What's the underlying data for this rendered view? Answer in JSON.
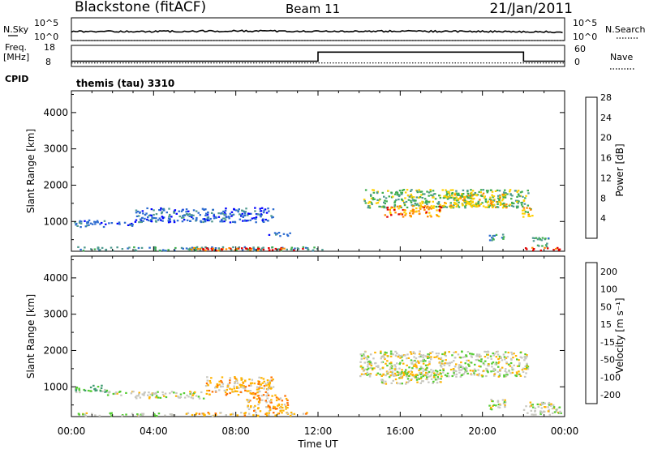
{
  "header": {
    "station": "Blackstone (fitACF)",
    "beam": "Beam 11",
    "date": "21/Jan/2011"
  },
  "chart_data": [
    {
      "type": "line",
      "panel": "noise",
      "left_label": "N.Sky",
      "right_label": "N.Search",
      "left_ticks": [
        "10^5",
        "10^0"
      ],
      "right_ticks": [
        "10^5",
        "10^0"
      ],
      "scale": "log",
      "series": [
        {
          "name": "N.Sky",
          "style": "solid",
          "x": [
            0,
            4,
            8,
            12,
            16,
            20,
            24
          ],
          "values": [
            40,
            40,
            42,
            40,
            41,
            40,
            38
          ]
        },
        {
          "name": "N.Search",
          "style": "dotted",
          "x": [
            0,
            24
          ],
          "values": [
            0,
            0
          ]
        }
      ]
    },
    {
      "type": "line",
      "panel": "frequency",
      "left_label": "Freq.",
      "left_unit": "[MHz]",
      "right_label": "Nave",
      "left_ticks": [
        "18",
        "8"
      ],
      "right_ticks": [
        "60",
        "0"
      ],
      "series": [
        {
          "name": "Freq.",
          "style": "solid",
          "x": [
            0,
            12,
            12,
            22,
            22,
            24
          ],
          "values": [
            10.5,
            10.5,
            14.8,
            14.8,
            10.5,
            10.5
          ]
        },
        {
          "name": "Nave",
          "style": "dotted",
          "x": [
            0,
            12,
            24
          ],
          "values": [
            10,
            10,
            10
          ]
        }
      ]
    },
    {
      "type": "heatmap",
      "panel": "power",
      "cpid_label": "CPID",
      "mode_label": "themis (tau) 3310",
      "ylabel": "Slant Range [km]",
      "ylim": [
        180,
        4600
      ],
      "yticks": [
        1000,
        2000,
        3000,
        4000
      ],
      "xlim": [
        0,
        24
      ],
      "colorbar": {
        "label": "Power [dB]",
        "ticks": [
          "4",
          "8",
          "12",
          "16",
          "20",
          "24",
          "28"
        ],
        "colors": [
          "#0000ff",
          "#2c6bd0",
          "#4f9a8f",
          "#3fae4f",
          "#ffd000",
          "#ff8a00",
          "#e00000"
        ]
      },
      "regions": [
        {
          "x": [
            0.1,
            1.7
          ],
          "y": [
            860,
            1060
          ],
          "level": 1
        },
        {
          "x": [
            1.6,
            3.0
          ],
          "y": [
            900,
            1000
          ],
          "level": 1
        },
        {
          "x": [
            3.0,
            9.8
          ],
          "y": [
            1000,
            1400
          ],
          "level": 1
        },
        {
          "x": [
            9.5,
            10.6
          ],
          "y": [
            620,
            720
          ],
          "level": 1
        },
        {
          "x": [
            14.2,
            22.2
          ],
          "y": [
            1400,
            1900
          ],
          "level": 3
        },
        {
          "x": [
            15.2,
            18.0
          ],
          "y": [
            1150,
            1450
          ],
          "level": 5
        },
        {
          "x": [
            18.0,
            21.2
          ],
          "y": [
            1400,
            1800
          ],
          "level": 4
        },
        {
          "x": [
            20.3,
            21.0
          ],
          "y": [
            500,
            700
          ],
          "level": 2
        },
        {
          "x": [
            21.9,
            22.5
          ],
          "y": [
            1100,
            1400
          ],
          "level": 4
        },
        {
          "x": [
            22.4,
            23.2
          ],
          "y": [
            330,
            600
          ],
          "level": 2
        },
        {
          "x": [
            0.2,
            12.3
          ],
          "y": [
            220,
            320
          ],
          "level": 2
        },
        {
          "x": [
            5.8,
            11.8
          ],
          "y": [
            220,
            300
          ],
          "level": 6
        },
        {
          "x": [
            22.0,
            23.9
          ],
          "y": [
            220,
            300
          ],
          "level": 6
        }
      ]
    },
    {
      "type": "heatmap",
      "panel": "velocity",
      "ylabel": "Slant Range [km]",
      "ylim": [
        180,
        4600
      ],
      "yticks": [
        1000,
        2000,
        3000,
        4000
      ],
      "xlim": [
        0,
        24
      ],
      "xticks": [
        "00:00",
        "04:00",
        "08:00",
        "12:00",
        "16:00",
        "20:00",
        "00:00"
      ],
      "xlabel": "Time UT",
      "colorbar": {
        "label": "Velocity [m s⁻¹]",
        "ticks": [
          "200",
          "100",
          "50",
          "15",
          "-15",
          "-50",
          "-100",
          "-200"
        ],
        "colors": [
          "#0000cc",
          "#2d6bd0",
          "#3e9b6f",
          "#55cc33",
          "#c8c8c0",
          "#ffb400",
          "#ff7000",
          "#e00000"
        ]
      },
      "regions": [
        {
          "x": [
            0.1,
            1.7
          ],
          "y": [
            860,
            1060
          ],
          "level": 3
        },
        {
          "x": [
            1.6,
            3.0
          ],
          "y": [
            780,
            900
          ],
          "level": 4
        },
        {
          "x": [
            3.0,
            6.5
          ],
          "y": [
            700,
            900
          ],
          "level": 4
        },
        {
          "x": [
            6.5,
            9.8
          ],
          "y": [
            800,
            1300
          ],
          "level": 5
        },
        {
          "x": [
            8.5,
            10.5
          ],
          "y": [
            350,
            800
          ],
          "level": 5
        },
        {
          "x": [
            14.0,
            22.2
          ],
          "y": [
            1300,
            2000
          ],
          "level": 4
        },
        {
          "x": [
            15.0,
            18.0
          ],
          "y": [
            1100,
            1450
          ],
          "level": 4
        },
        {
          "x": [
            20.3,
            21.2
          ],
          "y": [
            400,
            700
          ],
          "level": 4
        },
        {
          "x": [
            21.9,
            23.8
          ],
          "y": [
            250,
            600
          ],
          "level": 4
        },
        {
          "x": [
            5.5,
            11.5
          ],
          "y": [
            220,
            320
          ],
          "level": 5
        },
        {
          "x": [
            0.3,
            5.0
          ],
          "y": [
            220,
            300
          ],
          "level": 4
        }
      ]
    }
  ]
}
